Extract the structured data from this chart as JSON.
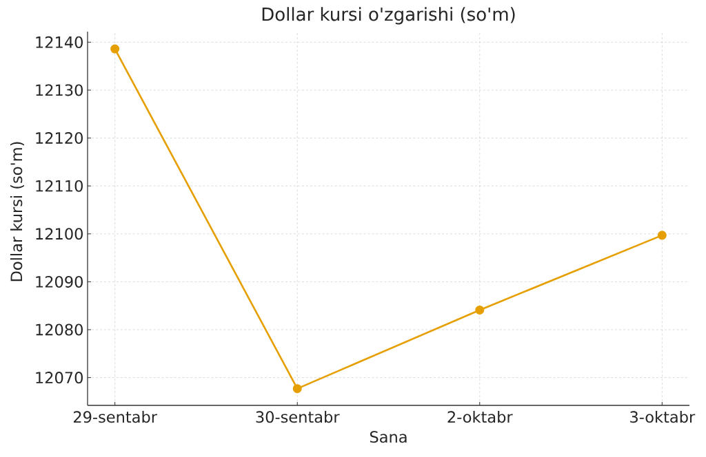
{
  "chart_data": {
    "type": "line",
    "title": "Dollar kursi o'zgarishi (so'm)",
    "xlabel": "Sana",
    "ylabel": "Dollar kursi (so'm)",
    "categories": [
      "29-sentabr",
      "30-sentabr",
      "2-oktabr",
      "3-oktabr"
    ],
    "series": [
      {
        "color": "#e69f00",
        "values": [
          12138.6,
          12067.7,
          12084.1,
          12099.7
        ]
      }
    ],
    "ylim": [
      12064.2,
      12142.2
    ],
    "yticks": [
      12070,
      12080,
      12090,
      12100,
      12110,
      12120,
      12130,
      12140
    ],
    "grid": true,
    "marker": "circle",
    "line_style": "solid"
  }
}
